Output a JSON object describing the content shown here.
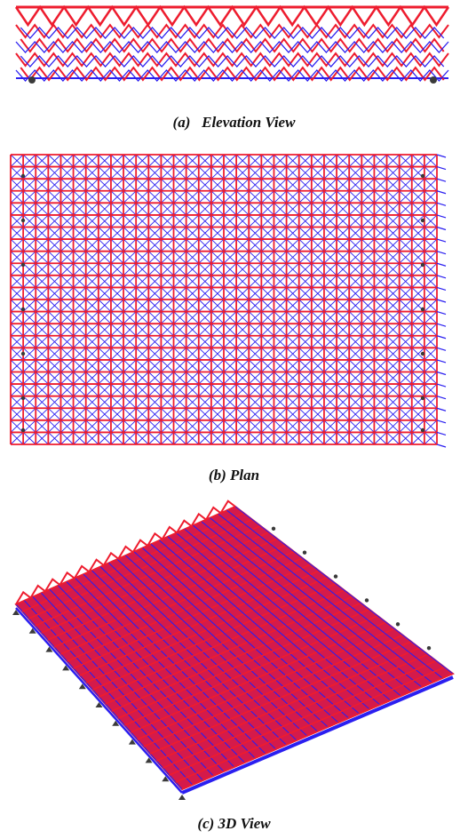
{
  "captions": {
    "elevation": "(a)   Elevation View",
    "plan": "(b) Plan",
    "view3d": "(c) 3D View"
  },
  "colors": {
    "member": "#ee1c2e",
    "support": "#2b1ff0",
    "node": "#3a3a3a",
    "background": "#ffffff",
    "caption": "#111111"
  }
}
